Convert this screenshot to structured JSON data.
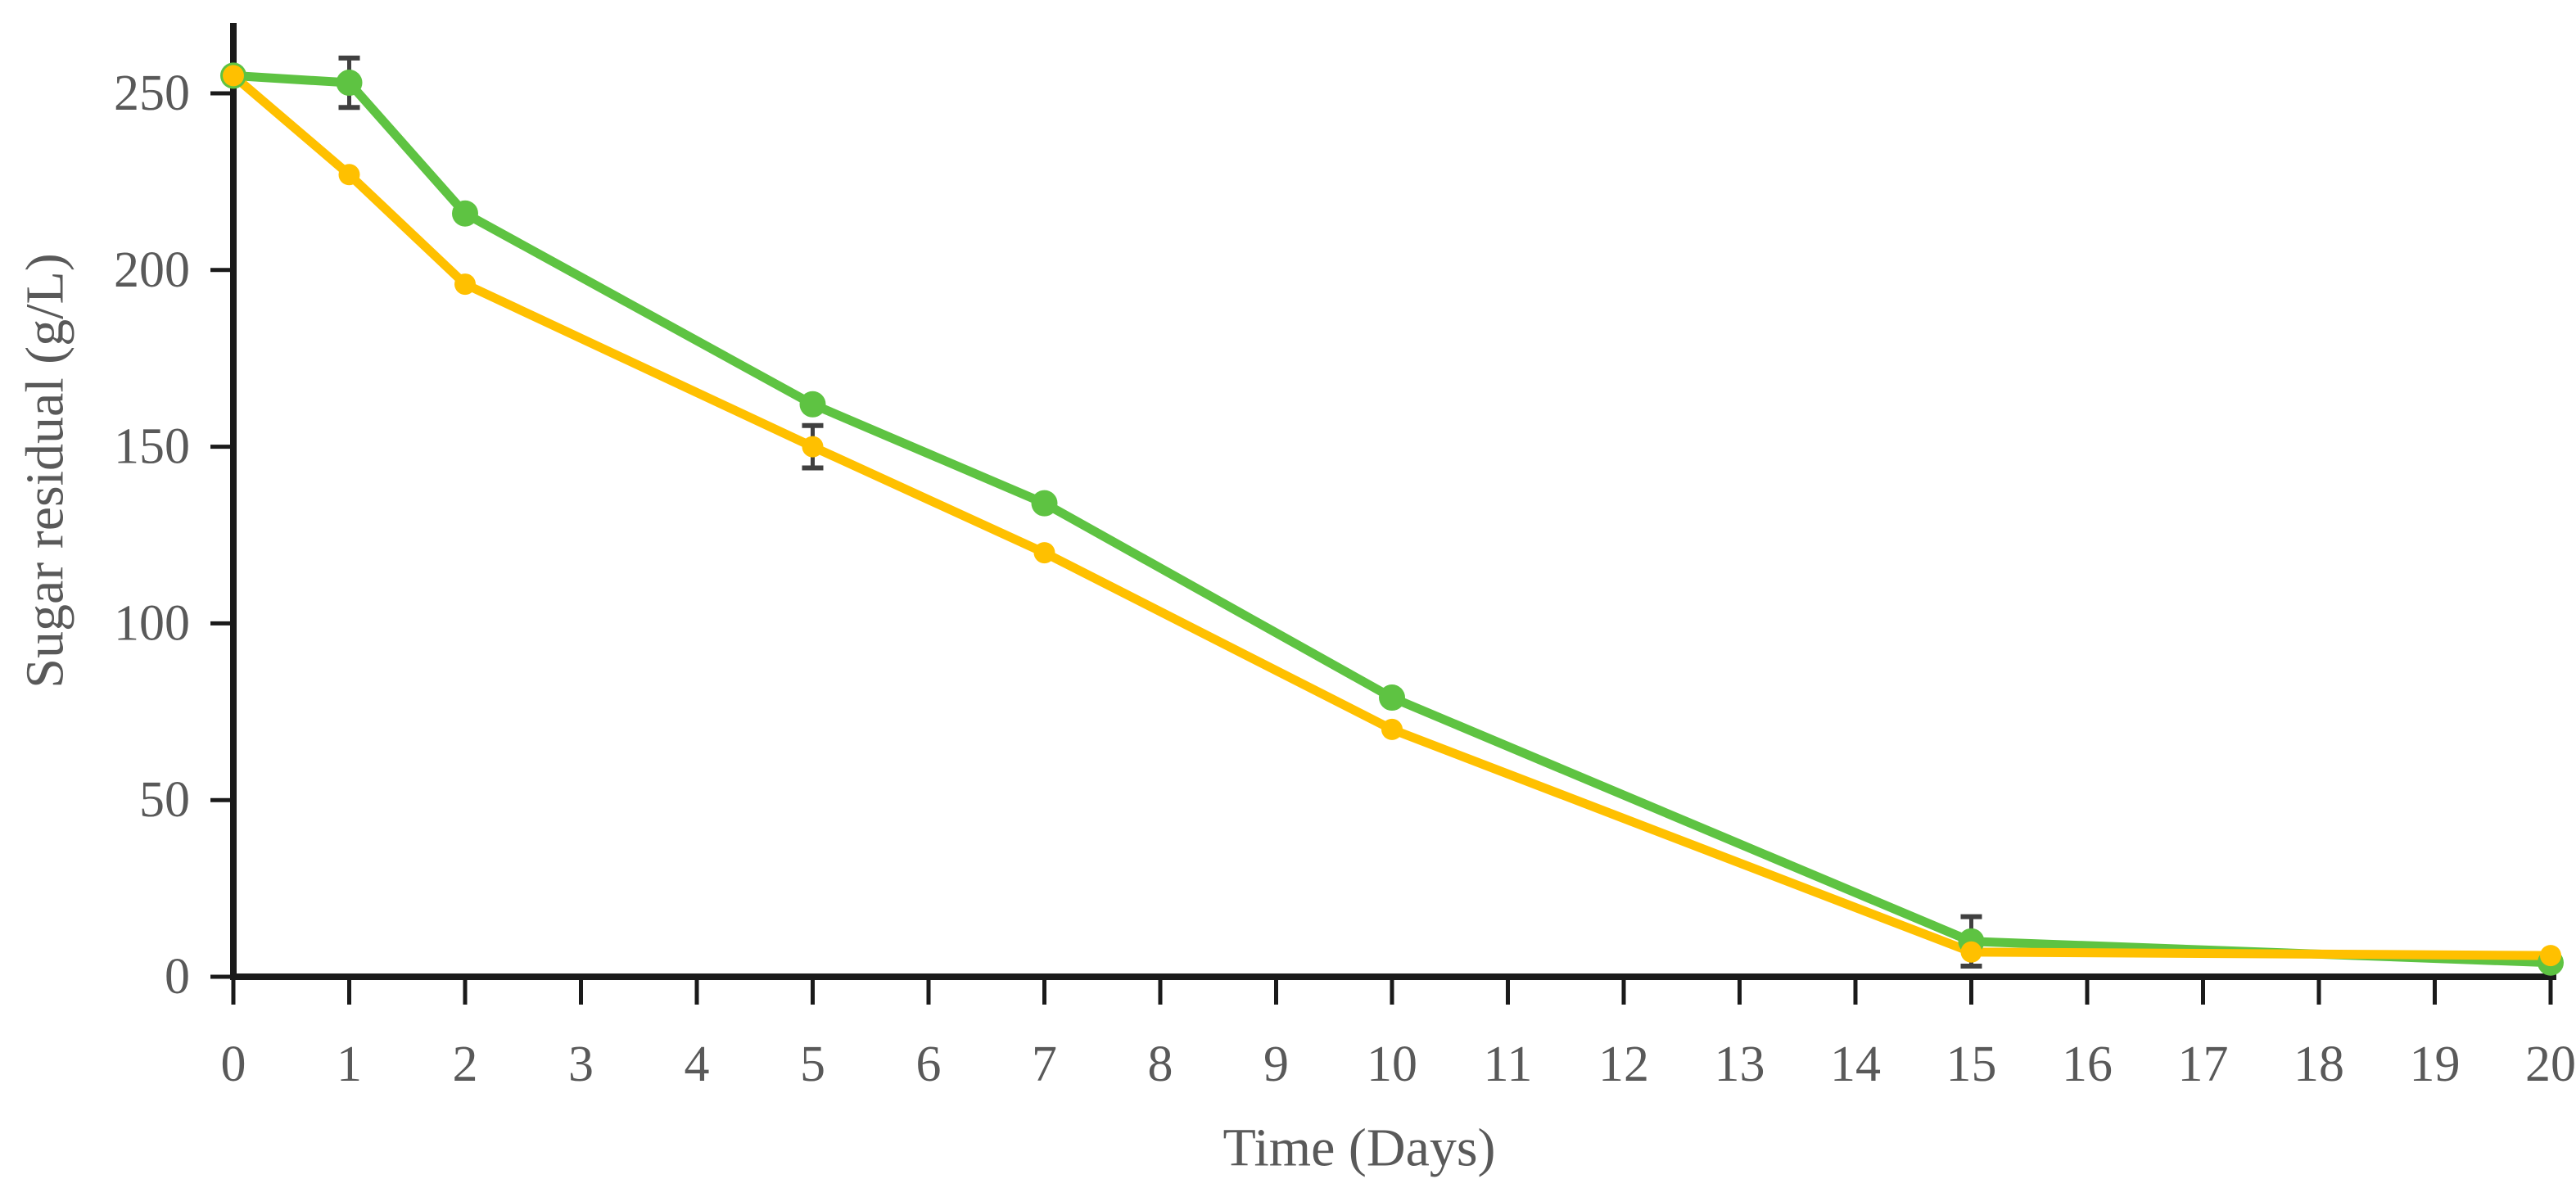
{
  "chart_data": {
    "type": "line",
    "title": "",
    "xlabel": "Time (Days)",
    "ylabel": "Sugar residual (g/L)",
    "grid": false,
    "legend_position": "none",
    "xlim": [
      0,
      20
    ],
    "ylim": [
      0,
      270
    ],
    "x_days": [
      0,
      1,
      2,
      5,
      7,
      10,
      15,
      20
    ],
    "x_tick_labels": [
      "0",
      "1",
      "2",
      "3",
      "4",
      "5",
      "6",
      "7",
      "8",
      "9",
      "10",
      "11",
      "12",
      "13",
      "14",
      "15",
      "16",
      "17",
      "18",
      "19",
      "20"
    ],
    "x_ticks": [
      0,
      1,
      2,
      3,
      4,
      5,
      6,
      7,
      8,
      9,
      10,
      11,
      12,
      13,
      14,
      15,
      16,
      17,
      18,
      19,
      20
    ],
    "y_tick_labels": [
      "0",
      "50",
      "100",
      "150",
      "200",
      "250"
    ],
    "y_ticks": [
      0,
      50,
      100,
      150,
      200,
      250
    ],
    "series": [
      {
        "name": "green",
        "color": "#5EC342",
        "values": [
          255,
          253,
          216,
          162,
          134,
          79,
          10,
          4
        ],
        "marker_radius": 16,
        "line_width": 11
      },
      {
        "name": "yellow",
        "color": "#FFC000",
        "values": [
          255,
          227,
          196,
          150,
          120,
          70,
          7,
          6
        ],
        "marker_radius": 13,
        "line_width": 11
      }
    ],
    "error_bars": [
      {
        "series": "green",
        "day": 1,
        "value": 253,
        "delta": 7
      },
      {
        "series": "yellow",
        "day": 5,
        "value": 150,
        "delta": 6
      },
      {
        "series": "green",
        "day": 15,
        "value": 10,
        "delta": 7
      }
    ],
    "error_bar_color": "#404040",
    "axis_color": "#1a1a1a",
    "tick_label_color": "#595959"
  }
}
